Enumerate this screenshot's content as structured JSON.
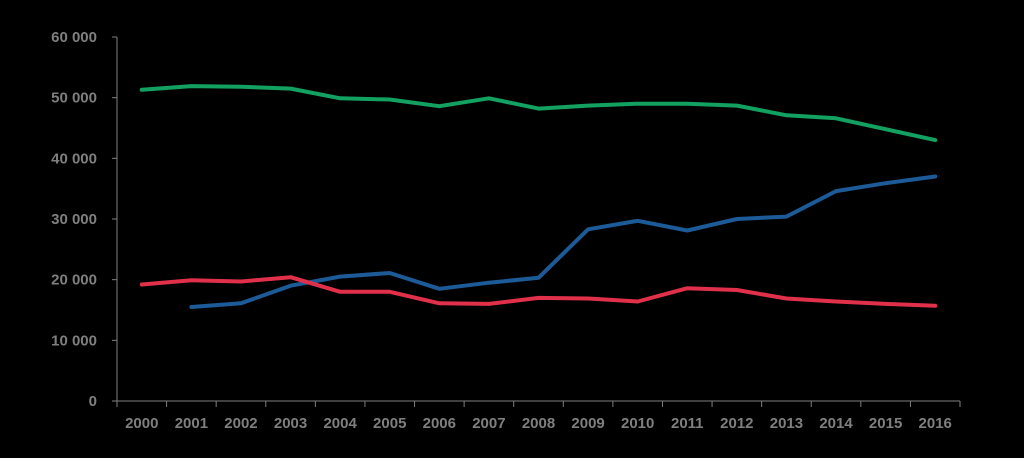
{
  "chart_data": {
    "type": "line",
    "title": "",
    "xlabel": "",
    "ylabel": "",
    "x": [
      "2000",
      "2001",
      "2002",
      "2003",
      "2004",
      "2005",
      "2006",
      "2007",
      "2008",
      "2009",
      "2010",
      "2011",
      "2012",
      "2013",
      "2014",
      "2015",
      "2016"
    ],
    "y_ticks": [
      "0",
      "10 000",
      "20 000",
      "30 000",
      "40 000",
      "50 000",
      "60 000"
    ],
    "ylim": [
      0,
      60000
    ],
    "grid": false,
    "legend": "none",
    "series": [
      {
        "color": "#12a160",
        "values": [
          51300,
          51900,
          51800,
          51500,
          49900,
          49700,
          48600,
          49900,
          48200,
          48700,
          49000,
          49000,
          48700,
          47100,
          46600,
          44800,
          43000
        ]
      },
      {
        "color": "#1c5b98",
        "values": [
          null,
          15500,
          16100,
          19000,
          20500,
          21100,
          18500,
          19500,
          20300,
          28300,
          29700,
          28100,
          30000,
          30400,
          34600,
          35900,
          37000
        ]
      },
      {
        "color": "#e0304a",
        "values": [
          19200,
          19900,
          19700,
          20400,
          18000,
          18000,
          16100,
          16000,
          17000,
          16900,
          16400,
          18600,
          18300,
          16900,
          16400,
          16000,
          15700
        ]
      }
    ]
  }
}
